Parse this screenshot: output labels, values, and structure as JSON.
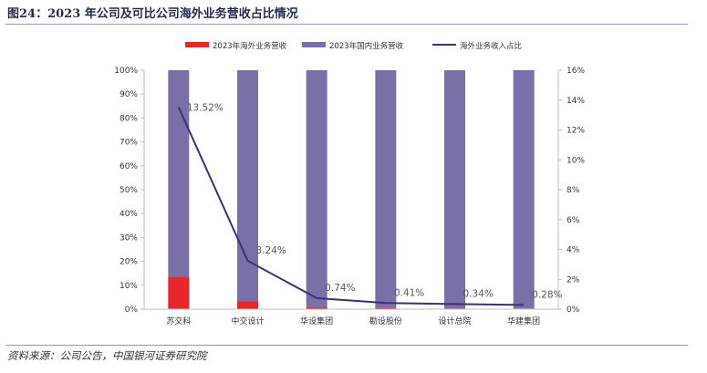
{
  "header": {
    "title": "图24：2023 年公司及可比公司海外业务营收占比情况"
  },
  "footer": {
    "source": "资料来源：公司公告，中国银河证券研究院"
  },
  "colors": {
    "overseas": "#e8262b",
    "domestic": "#7b6fa8",
    "line": "#3d2f78",
    "axis": "#bdbdbd"
  },
  "chart_data": {
    "type": "bar",
    "stacked": true,
    "title": "2023 年公司及可比公司海外业务营收占比情况",
    "categories": [
      "苏交科",
      "中交设计",
      "华设集团",
      "勘设股份",
      "设计总院",
      "华建集团"
    ],
    "series": [
      {
        "name": "2023年海外业务营收",
        "type": "bar",
        "axis": "left",
        "values": [
          13.52,
          3.24,
          0.74,
          0.41,
          0.34,
          0.28
        ]
      },
      {
        "name": "2023年国内业务营收",
        "type": "bar",
        "axis": "left",
        "values": [
          86.48,
          96.76,
          99.26,
          99.59,
          99.66,
          99.72
        ]
      },
      {
        "name": "海外业务收入占比",
        "type": "line",
        "axis": "right",
        "values": [
          13.52,
          3.24,
          0.74,
          0.41,
          0.34,
          0.28
        ]
      }
    ],
    "data_labels": [
      "13.52%",
      "3.24%",
      "0.74%",
      "0.41%",
      "0.34%",
      "0.28%"
    ],
    "left_axis": {
      "range": [
        0,
        100
      ],
      "ticks": [
        "0%",
        "10%",
        "20%",
        "30%",
        "40%",
        "50%",
        "60%",
        "70%",
        "80%",
        "90%",
        "100%"
      ]
    },
    "right_axis": {
      "range": [
        0,
        16
      ],
      "ticks": [
        "0%",
        "2%",
        "4%",
        "6%",
        "8%",
        "10%",
        "12%",
        "14%",
        "16%"
      ]
    },
    "legend": {
      "position": "top"
    }
  }
}
